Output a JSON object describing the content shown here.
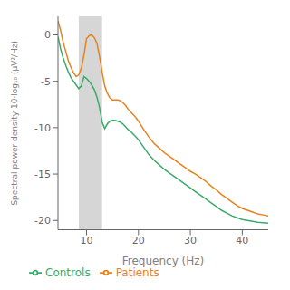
{
  "chart_data": {
    "type": "line",
    "xlabel": "Frequency (Hz)",
    "ylabel": "Spectral power density 10·log₁₀ (μV²/Hz)",
    "xlim": [
      4.5,
      45
    ],
    "ylim": [
      -21,
      2
    ],
    "xticks": [
      10,
      20,
      30,
      40
    ],
    "yticks": [
      0,
      -5,
      -10,
      -15,
      -20
    ],
    "grid": false,
    "legend": "bottom",
    "bands": [
      {
        "x": [
          8.5,
          13.0
        ],
        "color": "#c8c8c8"
      }
    ],
    "x": [
      4.5,
      5.0,
      5.5,
      6.0,
      6.5,
      7.0,
      7.5,
      8.0,
      8.5,
      9.0,
      9.5,
      10.0,
      10.5,
      11.0,
      11.5,
      12.0,
      12.5,
      13.0,
      13.5,
      14.0,
      14.5,
      15.0,
      15.5,
      16.0,
      16.5,
      17.0,
      17.5,
      18.0,
      18.5,
      19.0,
      19.5,
      20.0,
      21.0,
      22.0,
      23.0,
      24.0,
      25.0,
      26.0,
      27.0,
      28.0,
      29.0,
      30.0,
      31.0,
      32.0,
      33.0,
      34.0,
      35.0,
      36.0,
      37.0,
      38.0,
      39.0,
      40.0,
      41.0,
      42.0,
      43.0,
      44.0,
      45.0
    ],
    "series": [
      {
        "name": "Patients",
        "color": "#E8821A",
        "values": [
          1.5,
          0.5,
          -0.8,
          -1.8,
          -2.8,
          -3.5,
          -4.1,
          -4.5,
          -4.3,
          -3.6,
          -2.2,
          -0.4,
          -0.1,
          0.0,
          -0.3,
          -0.9,
          -2.3,
          -4.0,
          -5.5,
          -6.3,
          -6.8,
          -7.0,
          -7.0,
          -7.0,
          -7.1,
          -7.3,
          -7.6,
          -8.0,
          -8.3,
          -8.6,
          -8.9,
          -9.3,
          -10.2,
          -11.0,
          -11.7,
          -12.2,
          -12.7,
          -13.1,
          -13.5,
          -13.9,
          -14.3,
          -14.7,
          -15.0,
          -15.4,
          -15.8,
          -16.3,
          -16.7,
          -17.2,
          -17.6,
          -18.0,
          -18.4,
          -18.7,
          -18.9,
          -19.1,
          -19.3,
          -19.4,
          -19.5
        ]
      },
      {
        "name": "Controls",
        "color": "#3aaa6a",
        "values": [
          -0.2,
          -1.5,
          -2.5,
          -3.3,
          -4.0,
          -4.6,
          -5.0,
          -5.4,
          -5.8,
          -5.5,
          -4.5,
          -4.7,
          -5.0,
          -5.4,
          -5.9,
          -6.7,
          -7.8,
          -9.4,
          -10.1,
          -9.6,
          -9.3,
          -9.2,
          -9.2,
          -9.3,
          -9.4,
          -9.6,
          -9.9,
          -10.2,
          -10.4,
          -10.7,
          -11.0,
          -11.3,
          -12.1,
          -12.9,
          -13.5,
          -14.0,
          -14.5,
          -14.9,
          -15.3,
          -15.7,
          -16.1,
          -16.5,
          -16.9,
          -17.3,
          -17.7,
          -18.1,
          -18.5,
          -18.9,
          -19.2,
          -19.5,
          -19.7,
          -19.9,
          -20.0,
          -20.1,
          -20.2,
          -20.25,
          -20.3
        ]
      }
    ]
  }
}
